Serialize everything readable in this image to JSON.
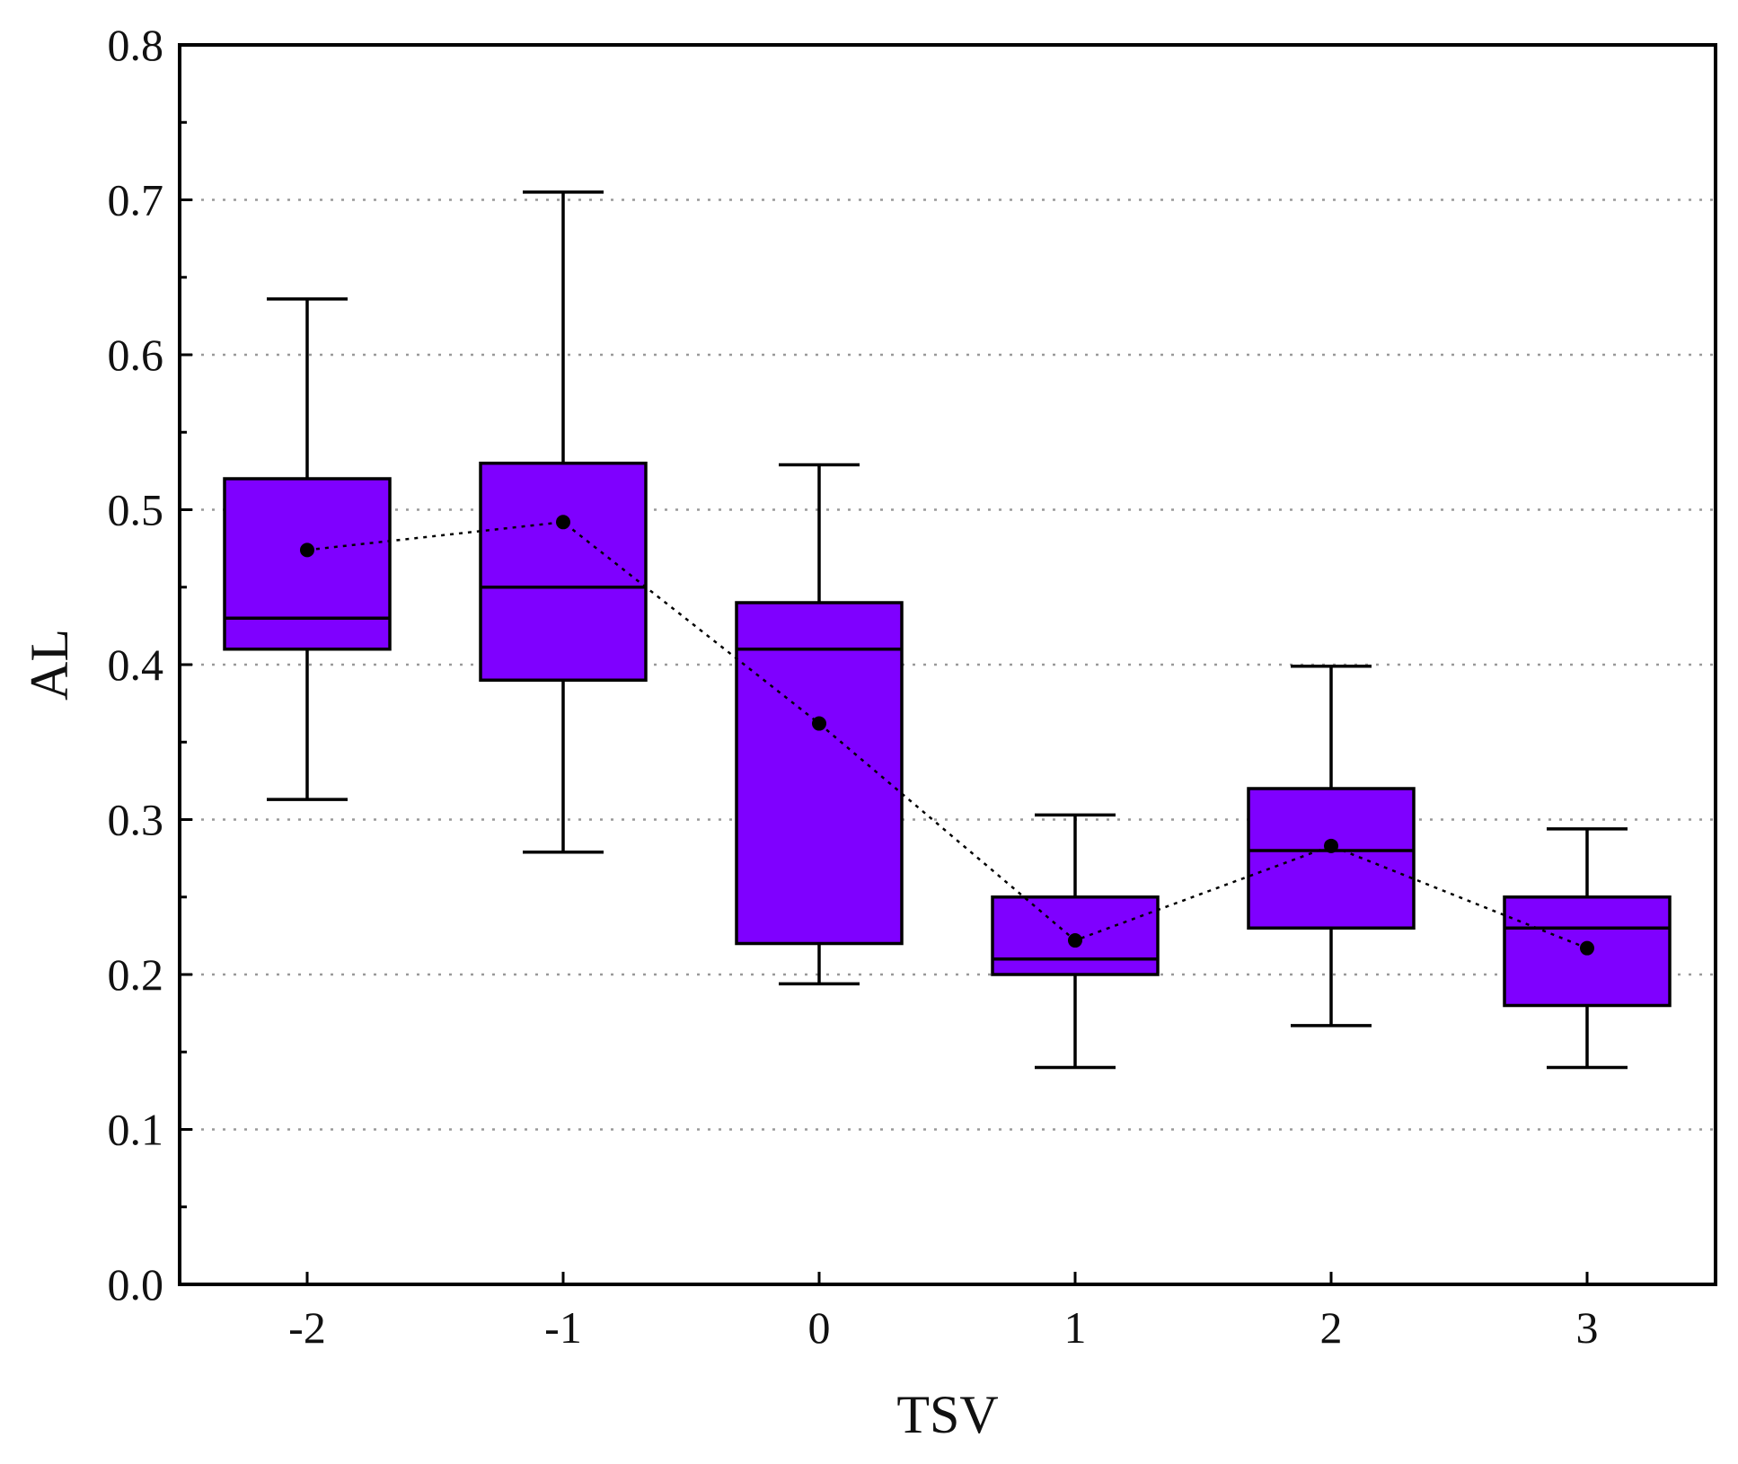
{
  "chart_data": {
    "type": "box",
    "title": "",
    "xlabel": "TSV",
    "ylabel": "AL",
    "categories": [
      "-2",
      "-1",
      "0",
      "1",
      "2",
      "3"
    ],
    "ylim": [
      0.0,
      0.8
    ],
    "yticks": [
      "0.0",
      "0.1",
      "0.2",
      "0.3",
      "0.4",
      "0.5",
      "0.6",
      "0.7",
      "0.8"
    ],
    "ytick_values": [
      0.0,
      0.1,
      0.2,
      0.3,
      0.4,
      0.5,
      0.6,
      0.7,
      0.8
    ],
    "grid": true,
    "boxes": [
      {
        "category": "-2",
        "whisker_low": 0.313,
        "q1": 0.41,
        "median": 0.43,
        "q3": 0.52,
        "whisker_high": 0.636,
        "mean": 0.474
      },
      {
        "category": "-1",
        "whisker_low": 0.279,
        "q1": 0.39,
        "median": 0.45,
        "q3": 0.53,
        "whisker_high": 0.705,
        "mean": 0.492
      },
      {
        "category": "0",
        "whisker_low": 0.194,
        "q1": 0.22,
        "median": 0.41,
        "q3": 0.44,
        "whisker_high": 0.529,
        "mean": 0.362
      },
      {
        "category": "1",
        "whisker_low": 0.14,
        "q1": 0.2,
        "median": 0.21,
        "q3": 0.25,
        "whisker_high": 0.303,
        "mean": 0.222
      },
      {
        "category": "2",
        "whisker_low": 0.167,
        "q1": 0.23,
        "median": 0.28,
        "q3": 0.32,
        "whisker_high": 0.399,
        "mean": 0.283
      },
      {
        "category": "3",
        "whisker_low": 0.14,
        "q1": 0.18,
        "median": 0.23,
        "q3": 0.25,
        "whisker_high": 0.294,
        "mean": 0.217
      }
    ],
    "mean_line": "dotted",
    "colors": {
      "box_fill": "#7f00ff",
      "stroke": "#000000",
      "grid": "#999999"
    }
  }
}
